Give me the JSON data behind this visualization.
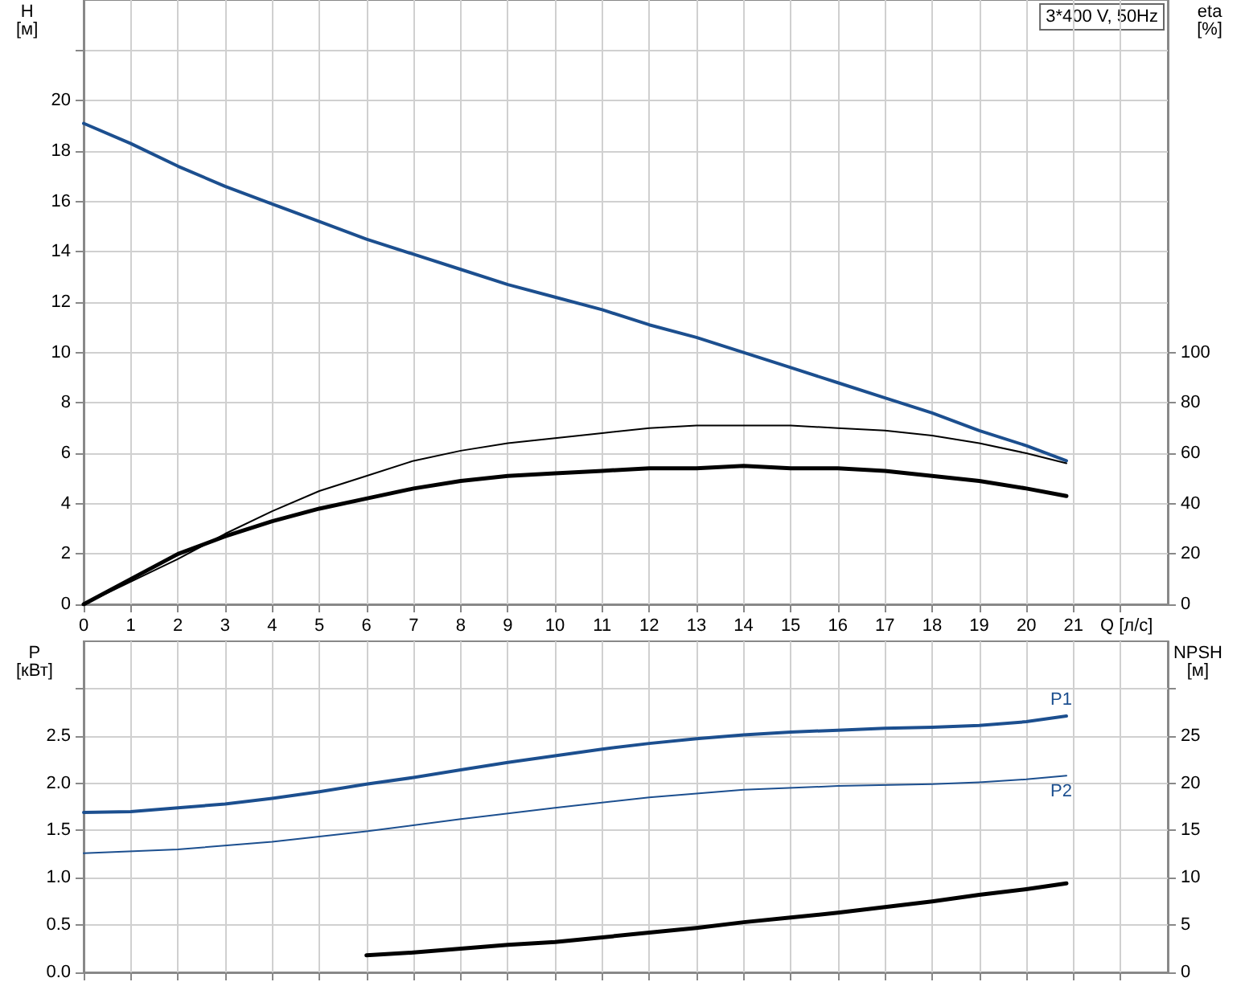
{
  "chart_data": [
    {
      "type": "line",
      "xlabel": "Q [л/с]",
      "ylabel": "H [м]",
      "y2label": "eta [%]",
      "annotations": [
        "3*400 V, 50Hz"
      ],
      "xlim": [
        0,
        23
      ],
      "xticks": [
        0,
        1,
        2,
        3,
        4,
        5,
        6,
        7,
        8,
        9,
        10,
        11,
        12,
        13,
        14,
        15,
        16,
        17,
        18,
        19,
        20,
        21,
        {
          "value": 22,
          "label": null
        }
      ],
      "ylim": [
        0,
        24
      ],
      "yticks": [
        0,
        2,
        4,
        6,
        8,
        10,
        12,
        14,
        16,
        18,
        20,
        {
          "value": 22,
          "label": null
        }
      ],
      "y2lim": [
        0,
        240
      ],
      "y2ticks": [
        0,
        20,
        40,
        60,
        80,
        100
      ],
      "grid": true,
      "legend": false,
      "marker": "none",
      "line_style": "solid",
      "series": [
        {
          "color": "#1c4f8f",
          "x": [
            0,
            1,
            2,
            3,
            4,
            5,
            6,
            7,
            8,
            9,
            10,
            11,
            12,
            13,
            14,
            15,
            16,
            17,
            18,
            19,
            20,
            20.85
          ],
          "values": [
            19.1,
            18.3,
            17.4,
            16.6,
            15.9,
            15.2,
            14.5,
            13.9,
            13.3,
            12.7,
            12.2,
            11.7,
            11.1,
            10.6,
            10.0,
            9.4,
            8.8,
            8.2,
            7.6,
            6.9,
            6.3,
            5.7
          ]
        },
        {
          "color": "#000000",
          "axis": "y2",
          "x": [
            0,
            1,
            2,
            3,
            4,
            5,
            6,
            7,
            8,
            9,
            10,
            11,
            12,
            13,
            14,
            15,
            16,
            17,
            18,
            19,
            20,
            20.85
          ],
          "values": [
            0,
            9,
            18,
            28,
            37,
            45,
            51,
            57,
            61,
            64,
            66,
            68,
            70,
            71,
            71,
            71,
            70,
            69,
            67,
            64,
            60,
            56
          ]
        },
        {
          "color": "#000000",
          "axis": "y2",
          "x": [
            0,
            1,
            2,
            3,
            4,
            5,
            6,
            7,
            8,
            9,
            10,
            11,
            12,
            13,
            14,
            15,
            16,
            17,
            18,
            19,
            20,
            20.85
          ],
          "values": [
            0,
            10,
            20,
            27,
            33,
            38,
            42,
            46,
            49,
            51,
            52,
            53,
            54,
            54,
            55,
            54,
            54,
            53,
            51,
            49,
            46,
            43
          ]
        }
      ]
    },
    {
      "type": "line",
      "ylabel": "P [кВт]",
      "y2label": "NPSH [м]",
      "tick_labels": "y",
      "xlim": [
        0,
        23
      ],
      "xticks": [
        0,
        1,
        2,
        3,
        4,
        5,
        6,
        7,
        8,
        9,
        10,
        11,
        12,
        13,
        14,
        15,
        16,
        17,
        18,
        19,
        20,
        21,
        22
      ],
      "ylim": [
        0,
        3.5
      ],
      "yticks": [
        {
          "value": 0,
          "label": "0.0"
        },
        {
          "value": 0.5,
          "label": "0.5"
        },
        {
          "value": 1,
          "label": "1.0"
        },
        {
          "value": 1.5,
          "label": "1.5"
        },
        {
          "value": 2,
          "label": "2.0"
        },
        {
          "value": 2.5,
          "label": "2.5"
        },
        {
          "value": 3,
          "label": null
        }
      ],
      "y2lim": [
        0,
        35
      ],
      "y2ticks": [
        0,
        5,
        10,
        15,
        20,
        25,
        {
          "value": 30,
          "label": null
        }
      ],
      "grid": true,
      "legend": false,
      "marker": "none",
      "line_style": "solid",
      "series": [
        {
          "name": "P1",
          "color": "#1c4f8f",
          "x": [
            0,
            1,
            2,
            3,
            4,
            5,
            6,
            7,
            8,
            9,
            10,
            11,
            12,
            13,
            14,
            15,
            16,
            17,
            18,
            19,
            20,
            20.85
          ],
          "values": [
            1.69,
            1.7,
            1.74,
            1.78,
            1.84,
            1.91,
            1.99,
            2.06,
            2.14,
            2.22,
            2.29,
            2.36,
            2.42,
            2.47,
            2.51,
            2.54,
            2.56,
            2.58,
            2.59,
            2.61,
            2.65,
            2.71
          ]
        },
        {
          "name": "P2",
          "color": "#1c4f8f",
          "x": [
            0,
            2,
            4,
            6,
            8,
            10,
            12,
            14,
            16,
            18,
            19,
            20,
            20.85
          ],
          "values": [
            1.26,
            1.3,
            1.38,
            1.49,
            1.62,
            1.74,
            1.85,
            1.93,
            1.97,
            1.99,
            2.01,
            2.04,
            2.08
          ]
        },
        {
          "color": "#000000",
          "axis": "y2",
          "x": [
            6,
            7,
            8,
            9,
            10,
            11,
            12,
            13,
            14,
            15,
            16,
            17,
            18,
            19,
            20,
            20.85
          ],
          "values": [
            1.8,
            2.1,
            2.5,
            2.9,
            3.2,
            3.7,
            4.2,
            4.7,
            5.3,
            5.8,
            6.3,
            6.9,
            7.5,
            8.2,
            8.8,
            9.4
          ]
        }
      ]
    }
  ]
}
